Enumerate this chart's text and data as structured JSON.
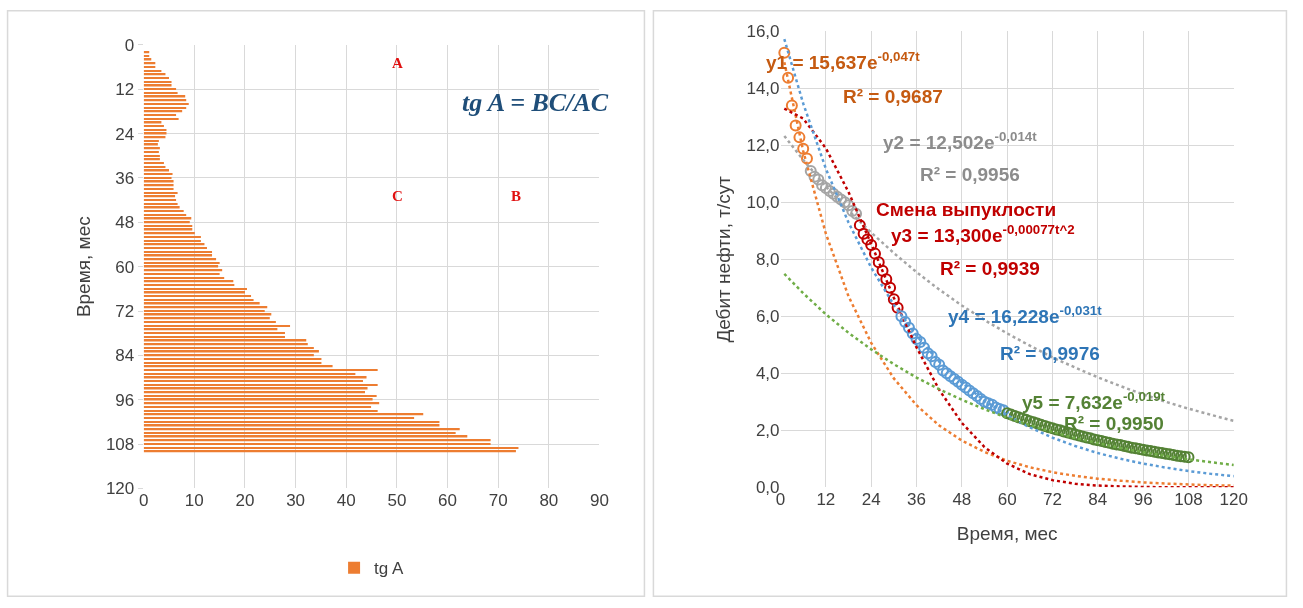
{
  "chart_data": [
    {
      "type": "bar",
      "orientation": "horizontal",
      "ylabel": "Время, мес",
      "x": [
        2,
        3,
        4,
        5,
        6,
        7,
        8,
        9,
        10,
        11,
        12,
        13,
        14,
        15,
        16,
        17,
        18,
        19,
        20,
        21,
        22,
        23,
        24,
        25,
        26,
        27,
        28,
        29,
        30,
        31,
        32,
        33,
        34,
        35,
        36,
        37,
        38,
        39,
        40,
        41,
        42,
        43,
        44,
        45,
        46,
        47,
        48,
        49,
        50,
        51,
        52,
        53,
        54,
        55,
        56,
        57,
        58,
        59,
        60,
        61,
        62,
        63,
        64,
        65,
        66,
        67,
        68,
        69,
        70,
        71,
        72,
        73,
        74,
        75,
        76,
        77,
        78,
        79,
        80,
        81,
        82,
        83,
        84,
        85,
        86,
        87,
        88,
        89,
        90,
        91,
        92,
        93,
        94,
        95,
        96,
        97,
        98,
        99,
        100,
        101,
        102,
        103,
        104,
        105,
        106,
        107,
        108,
        109,
        110
      ],
      "series": [
        {
          "name": "tg A",
          "color": "#ed7d31",
          "values": [
            1.1,
            1.1,
            1.5,
            2.3,
            2.3,
            3.5,
            4.3,
            5.0,
            5.5,
            5.5,
            6.4,
            6.7,
            8.2,
            8.4,
            8.9,
            8.4,
            7.6,
            6.4,
            6.9,
            3.5,
            4.0,
            4.5,
            4.5,
            4.3,
            3.0,
            2.8,
            3.2,
            3.0,
            3.2,
            3.2,
            4.0,
            4.3,
            5.0,
            5.7,
            5.5,
            5.9,
            5.9,
            5.9,
            6.7,
            6.2,
            6.4,
            6.7,
            7.1,
            7.9,
            8.4,
            9.4,
            9.1,
            9.6,
            9.6,
            10.1,
            11.3,
            11.3,
            12.0,
            12.5,
            13.5,
            13.5,
            14.3,
            15.0,
            14.7,
            15.5,
            15.0,
            15.9,
            17.7,
            17.9,
            20.4,
            20.0,
            21.2,
            21.7,
            22.9,
            24.4,
            23.9,
            25.2,
            24.9,
            26.1,
            28.9,
            26.4,
            27.9,
            27.9,
            32.1,
            32.4,
            33.6,
            34.6,
            33.6,
            35.1,
            35.1,
            37.3,
            46.2,
            41.8,
            44.0,
            43.3,
            46.2,
            44.2,
            43.7,
            46.0,
            45.2,
            46.5,
            44.9,
            46.2,
            55.2,
            53.4,
            58.4,
            58.4,
            62.4,
            61.6,
            63.9,
            68.5,
            68.5,
            74.0,
            73.5
          ]
        }
      ],
      "xlim": [
        0,
        90
      ],
      "xticks": [
        0,
        10,
        20,
        30,
        40,
        50,
        60,
        70,
        80,
        90
      ],
      "ylim": [
        120,
        0
      ],
      "yticks": [
        0,
        12,
        24,
        36,
        48,
        60,
        72,
        84,
        96,
        108,
        120
      ],
      "grid": true,
      "legend": "bottom",
      "annotations": [
        "A",
        "C",
        "B",
        "tg A = BC/AC"
      ]
    },
    {
      "type": "scatter",
      "marker": "circle",
      "xlabel": "Время, мес",
      "ylabel": "Дебит нефти, т/сут",
      "series": [
        {
          "color": "#ed7d31",
          "x": [
            1,
            2,
            3,
            4,
            5,
            6,
            7
          ],
          "values": [
            15.25,
            14.37,
            13.4,
            12.7,
            12.28,
            11.88,
            11.54
          ]
        },
        {
          "color": "#a5a5a5",
          "x": [
            8,
            9,
            10,
            11,
            12,
            13,
            14,
            15,
            16,
            17,
            18,
            19,
            20
          ],
          "values": [
            11.1,
            10.9,
            10.8,
            10.6,
            10.5,
            10.4,
            10.3,
            10.2,
            10.1,
            10.0,
            9.9,
            9.7,
            9.6
          ]
        },
        {
          "color": "#c00000",
          "x": [
            21,
            22,
            23,
            24,
            25,
            26,
            27,
            28,
            29,
            30,
            31
          ],
          "values": [
            9.2,
            8.9,
            8.7,
            8.5,
            8.2,
            7.9,
            7.6,
            7.3,
            7.0,
            6.6,
            6.3
          ]
        },
        {
          "color": "#5b9bd5",
          "x": [
            32,
            33,
            34,
            35,
            36,
            37,
            38,
            39,
            40,
            41,
            42,
            43,
            44,
            45,
            46,
            47,
            48,
            49,
            50,
            51,
            52,
            53,
            54,
            55,
            56,
            57,
            58,
            59
          ],
          "values": [
            6.0,
            5.8,
            5.6,
            5.4,
            5.2,
            5.1,
            4.9,
            4.7,
            4.6,
            4.4,
            4.3,
            4.1,
            4.0,
            3.9,
            3.8,
            3.7,
            3.6,
            3.5,
            3.4,
            3.3,
            3.2,
            3.1,
            3.0,
            2.95,
            2.9,
            2.8,
            2.75,
            2.7
          ]
        },
        {
          "color": "#548235",
          "x": [
            60,
            61,
            62,
            63,
            64,
            65,
            66,
            67,
            68,
            69,
            70,
            71,
            72,
            73,
            74,
            75,
            76,
            77,
            78,
            79,
            80,
            81,
            82,
            83,
            84,
            85,
            86,
            87,
            88,
            89,
            90,
            91,
            92,
            93,
            94,
            95,
            96,
            97,
            98,
            99,
            100,
            101,
            102,
            103,
            104,
            105,
            106,
            107,
            108
          ],
          "values": [
            2.6,
            2.55,
            2.5,
            2.46,
            2.41,
            2.37,
            2.32,
            2.28,
            2.24,
            2.19,
            2.15,
            2.11,
            2.07,
            2.03,
            2.0,
            1.96,
            1.92,
            1.89,
            1.85,
            1.82,
            1.78,
            1.75,
            1.72,
            1.68,
            1.65,
            1.62,
            1.59,
            1.56,
            1.53,
            1.5,
            1.48,
            1.45,
            1.42,
            1.39,
            1.37,
            1.34,
            1.32,
            1.29,
            1.27,
            1.25,
            1.22,
            1.2,
            1.18,
            1.16,
            1.13,
            1.11,
            1.09,
            1.07,
            1.05
          ]
        },
        {
          "type": "line",
          "marker": "none",
          "line_style": "dotted",
          "color": "#ed7d31",
          "x": [
            1,
            6,
            12,
            18,
            24,
            30,
            36,
            42,
            48,
            54,
            60,
            66,
            72,
            78,
            84,
            90,
            96,
            102,
            108,
            114,
            120
          ],
          "values": [
            14.92,
            11.8,
            8.9,
            6.7,
            5.07,
            3.82,
            2.88,
            2.17,
            1.64,
            1.24,
            0.93,
            0.7,
            0.53,
            0.4,
            0.3,
            0.23,
            0.17,
            0.13,
            0.1,
            0.07,
            0.06
          ]
        },
        {
          "type": "line",
          "marker": "none",
          "line_style": "dotted",
          "color": "#a5a5a5",
          "x": [
            1,
            6,
            12,
            18,
            24,
            30,
            36,
            42,
            48,
            54,
            60,
            66,
            72,
            78,
            84,
            90,
            96,
            102,
            108,
            114,
            120
          ],
          "values": [
            12.33,
            11.49,
            10.56,
            9.71,
            8.94,
            8.22,
            7.55,
            6.94,
            6.38,
            5.87,
            5.4,
            4.97,
            4.56,
            4.2,
            3.86,
            3.55,
            3.26,
            3.0,
            2.76,
            2.54,
            2.33
          ]
        },
        {
          "type": "line",
          "marker": "none",
          "line_style": "dotted",
          "color": "#c00000",
          "x": [
            1,
            6,
            12,
            18,
            24,
            30,
            36,
            42,
            48,
            54,
            60,
            66,
            72,
            78,
            84,
            90,
            96,
            102,
            108,
            114,
            120
          ],
          "values": [
            13.29,
            12.94,
            11.9,
            10.36,
            8.54,
            6.65,
            4.91,
            3.42,
            2.26,
            1.41,
            0.83,
            0.46,
            0.25,
            0.12,
            0.06,
            0.03,
            0.01,
            0.0,
            0.0,
            0.0,
            0.0
          ]
        },
        {
          "type": "line",
          "marker": "none",
          "line_style": "dotted",
          "color": "#5b9bd5",
          "x": [
            1,
            6,
            12,
            18,
            24,
            30,
            36,
            42,
            48,
            54,
            60,
            66,
            72,
            78,
            84,
            90,
            96,
            102,
            108,
            114,
            120
          ],
          "values": [
            15.73,
            13.47,
            11.18,
            9.29,
            7.71,
            6.4,
            5.32,
            4.41,
            3.67,
            3.04,
            2.53,
            2.1,
            1.74,
            1.45,
            1.2,
            1.0,
            0.83,
            0.69,
            0.57,
            0.47,
            0.39
          ]
        },
        {
          "type": "line",
          "marker": "none",
          "line_style": "dotted",
          "color": "#70ad47",
          "x": [
            1,
            6,
            12,
            18,
            24,
            30,
            36,
            42,
            48,
            54,
            60,
            66,
            72,
            78,
            84,
            90,
            96,
            102,
            108,
            114,
            120
          ],
          "values": [
            7.49,
            6.81,
            6.07,
            5.42,
            4.84,
            4.32,
            3.85,
            3.44,
            3.07,
            2.74,
            2.44,
            2.18,
            1.94,
            1.73,
            1.55,
            1.38,
            1.23,
            1.1,
            0.98,
            0.88,
            0.78
          ]
        }
      ],
      "xlim": [
        0,
        120
      ],
      "xticks": [
        0,
        12,
        24,
        36,
        48,
        60,
        72,
        84,
        96,
        108,
        120
      ],
      "ylim": [
        0,
        16
      ],
      "yticks": [
        {
          "value": 0,
          "label": "0,0"
        },
        {
          "value": 2,
          "label": "2,0"
        },
        {
          "value": 4,
          "label": "4,0"
        },
        {
          "value": 6,
          "label": "6,0"
        },
        {
          "value": 8,
          "label": "8,0"
        },
        {
          "value": 10,
          "label": "10,0"
        },
        {
          "value": 12,
          "label": "12,0"
        },
        {
          "value": 14,
          "label": "14,0"
        },
        {
          "value": 16,
          "label": "16,0"
        }
      ],
      "grid": true,
      "annotations": [
        "y1 = 15,637e$^{-0,047t}$",
        "R² = 0,9687",
        "y2 = 12,502e$^{-0,014t}$",
        "R² = 0,9956",
        "Смена выпуклости",
        "y3 = 13,300e$^{-0,00077t^2}$",
        "R² = 0,9939",
        "y4 = 16,228e$^{-0,031t}$",
        "R² = 0,9976",
        "y5 = 7,632e$^{-0,019t}$",
        "R² = 0,9950"
      ]
    }
  ]
}
